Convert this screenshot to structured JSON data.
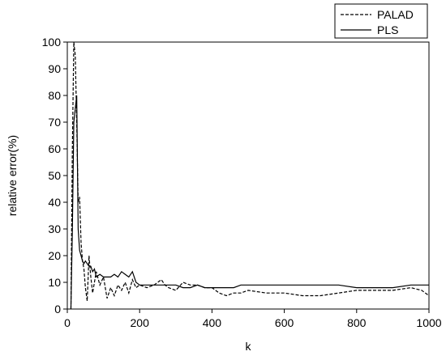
{
  "chart_data": {
    "type": "line",
    "x_label": "k",
    "y_label": "relative error(%)",
    "x": [
      10,
      14,
      18,
      22,
      26,
      30,
      34,
      38,
      42,
      46,
      50,
      55,
      60,
      65,
      70,
      75,
      80,
      90,
      100,
      110,
      120,
      130,
      140,
      150,
      160,
      170,
      180,
      190,
      200,
      220,
      240,
      260,
      270,
      280,
      300,
      320,
      340,
      360,
      380,
      400,
      420,
      440,
      460,
      480,
      500,
      550,
      600,
      650,
      700,
      750,
      800,
      850,
      900,
      950,
      980,
      1000
    ],
    "series": [
      {
        "name": "PALAD",
        "color": "#000000",
        "dash": true,
        "values": [
          0,
          60,
          100,
          95,
          70,
          40,
          42,
          25,
          18,
          15,
          8,
          3,
          20,
          12,
          6,
          10,
          14,
          9,
          12,
          4,
          8,
          5,
          9,
          7,
          10,
          6,
          11,
          8,
          9,
          8,
          9,
          11,
          9,
          8,
          7,
          10,
          9,
          9,
          8,
          8,
          6,
          5,
          6,
          6,
          7,
          6,
          6,
          5,
          5,
          6,
          7,
          7,
          7,
          8,
          7,
          5
        ]
      },
      {
        "name": "PLS",
        "color": "#000000",
        "dash": false,
        "values": [
          0,
          30,
          70,
          75,
          80,
          30,
          22,
          20,
          18,
          17,
          18,
          17,
          16,
          16,
          14,
          15,
          12,
          13,
          12,
          12,
          12,
          13,
          12,
          14,
          13,
          12,
          14,
          10,
          9,
          9,
          9,
          9,
          9,
          9,
          9,
          8,
          8,
          9,
          8,
          8,
          8,
          8,
          8,
          9,
          9,
          9,
          9,
          9,
          9,
          9,
          8,
          8,
          8,
          9,
          9,
          9
        ]
      }
    ],
    "xlim": [
      0,
      1000
    ],
    "xticks": [
      0,
      200,
      400,
      600,
      800,
      1000
    ],
    "ylim": [
      0,
      100
    ],
    "yticks": [
      0,
      10,
      20,
      30,
      40,
      50,
      60,
      70,
      80,
      90,
      100
    ],
    "legend": "top-right"
  }
}
